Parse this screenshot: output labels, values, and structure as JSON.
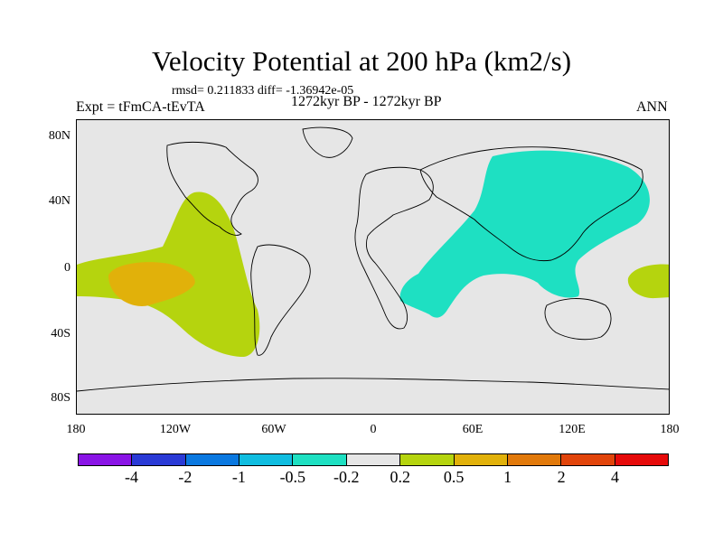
{
  "title": "Velocity Potential at 200 hPa (km2/s)",
  "stats": "rmsd= 0.211833 diff= -1.36942e-05",
  "experiment": "Expt = tFmCA-tEvTA",
  "period": "1272kyr BP - 1272kyr BP",
  "season": "ANN",
  "y_ticks": [
    "80N",
    "40N",
    "0",
    "40S",
    "80S"
  ],
  "x_ticks": [
    "180",
    "120W",
    "60W",
    "0",
    "60E",
    "120E",
    "180"
  ],
  "colorbar": {
    "colors": [
      "#8a14e6",
      "#2a3ad6",
      "#0a78e0",
      "#10bde0",
      "#1ee0c2",
      "#e6e6e6",
      "#b5d40e",
      "#e1b10a",
      "#e1790a",
      "#e1440a",
      "#e60a0a"
    ],
    "labels": [
      "-4",
      "-2",
      "-1",
      "-0.5",
      "-0.2",
      "0.2",
      "0.5",
      "1",
      "2",
      "4"
    ]
  },
  "map_fills": {
    "positive_low": "#b5d40e",
    "positive_mid": "#e1b10a",
    "negative_low": "#1ee0c2",
    "background": "#e6e6e6"
  }
}
